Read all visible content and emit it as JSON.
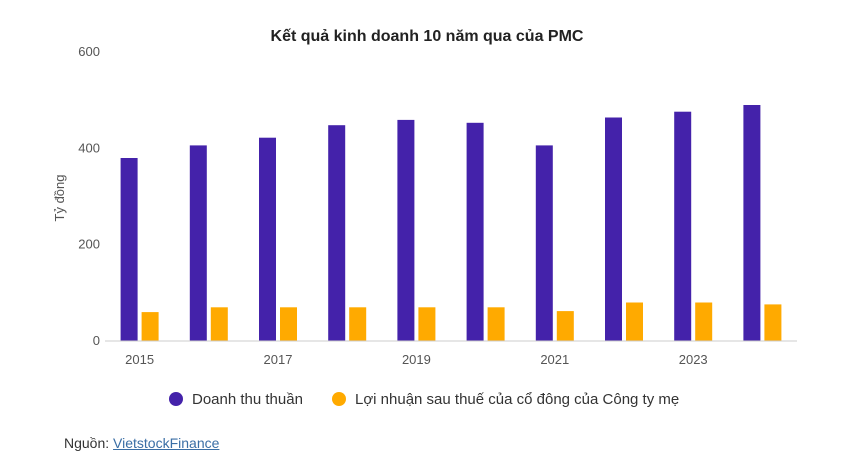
{
  "chart_data": {
    "type": "bar",
    "title": "Kết quả kinh doanh 10 năm qua của PMC",
    "ylabel": "Tỷ đồng",
    "xlabel": "",
    "ylim": [
      0,
      600
    ],
    "yticks": [
      "0",
      "200",
      "400",
      "600"
    ],
    "categories": [
      "2015",
      "2016",
      "2017",
      "2018",
      "2019",
      "2020",
      "2021",
      "2022",
      "2023",
      "2024"
    ],
    "x_tick_labels": [
      "2015",
      "",
      "2017",
      "",
      "2019",
      "",
      "2021",
      "",
      "2023",
      ""
    ],
    "series": [
      {
        "name": "Doanh thu thuần",
        "color": "#4422aa",
        "values": [
          380,
          406,
          422,
          448,
          459,
          453,
          406,
          464,
          476,
          490
        ]
      },
      {
        "name": "Lợi nhuận sau thuế của cổ đông của Công ty mẹ",
        "color": "#ffaa00",
        "values": [
          60,
          70,
          70,
          70,
          70,
          70,
          62,
          80,
          80,
          76
        ]
      }
    ],
    "grid": false,
    "legend_position": "bottom"
  },
  "source": {
    "label": "Nguồn: ",
    "link_text": "VietstockFinance"
  }
}
